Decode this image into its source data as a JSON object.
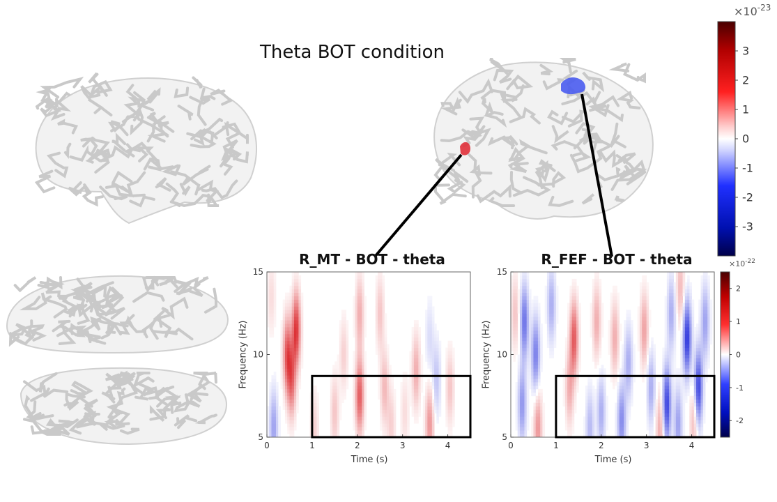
{
  "title": "Theta BOT condition",
  "brains": {
    "left_lateral": "brain-left-lateral",
    "right_lateral": "brain-right-lateral",
    "top_view": "brain-top-view",
    "bottom_view": "brain-bottom-view"
  },
  "colors": {
    "positive": "#e8141c",
    "negative": "#1a2ed8",
    "brain_fill": "#f2f2f2",
    "sulci": "#c9c9c9",
    "roi_red": "#e0303a",
    "roi_blue": "#4a5cf0"
  },
  "main_colorbar": {
    "exponent_label": "×10",
    "exponent": "-23",
    "ticks": [
      "3",
      "2",
      "1",
      "0",
      "-1",
      "-2",
      "-3"
    ],
    "tick_values": [
      3,
      2,
      1,
      0,
      -1,
      -2,
      -3
    ],
    "range": [
      -4,
      4
    ]
  },
  "chart_data": [
    {
      "type": "heatmap",
      "title": "R_MT - BOT - theta",
      "xlabel": "Time (s)",
      "ylabel": "Frequency (Hz)",
      "xlim": [
        0,
        4.5
      ],
      "ylim": [
        5,
        15
      ],
      "xticks": [
        "0",
        "1",
        "2",
        "3",
        "4"
      ],
      "yticks": [
        "5",
        "10",
        "15"
      ],
      "highlight_box": {
        "x": [
          1,
          4.5
        ],
        "y": [
          5,
          8.7
        ]
      },
      "blobs": [
        {
          "t": 0.45,
          "f": 10.0,
          "amp": 0.7,
          "sign": 1
        },
        {
          "t": 0.65,
          "f": 11.5,
          "amp": 0.85,
          "sign": 1
        },
        {
          "t": 0.55,
          "f": 8.5,
          "amp": 0.6,
          "sign": 1
        },
        {
          "t": 0.15,
          "f": 5.6,
          "amp": 0.4,
          "sign": -1
        },
        {
          "t": 0.1,
          "f": 13.5,
          "amp": 0.15,
          "sign": 1
        },
        {
          "t": 2.05,
          "f": 7.5,
          "amp": 0.7,
          "sign": 1
        },
        {
          "t": 2.05,
          "f": 12.5,
          "amp": 0.35,
          "sign": 1
        },
        {
          "t": 1.5,
          "f": 6.5,
          "amp": 0.25,
          "sign": 1
        },
        {
          "t": 1.7,
          "f": 10.0,
          "amp": 0.2,
          "sign": 1
        },
        {
          "t": 2.6,
          "f": 8.0,
          "amp": 0.3,
          "sign": 1
        },
        {
          "t": 2.5,
          "f": 12.5,
          "amp": 0.25,
          "sign": 1
        },
        {
          "t": 2.75,
          "f": 5.8,
          "amp": 0.2,
          "sign": 1
        },
        {
          "t": 3.3,
          "f": 9.0,
          "amp": 0.35,
          "sign": 1
        },
        {
          "t": 3.6,
          "f": 5.8,
          "amp": 0.45,
          "sign": 1
        },
        {
          "t": 3.75,
          "f": 8.5,
          "amp": 0.25,
          "sign": -1
        },
        {
          "t": 4.05,
          "f": 8.0,
          "amp": 0.25,
          "sign": 1
        },
        {
          "t": 3.05,
          "f": 6.5,
          "amp": 0.15,
          "sign": 1
        },
        {
          "t": 1.05,
          "f": 5.5,
          "amp": 0.2,
          "sign": 1
        },
        {
          "t": 3.6,
          "f": 11.0,
          "amp": 0.15,
          "sign": -1
        }
      ]
    },
    {
      "type": "heatmap",
      "title": "R_FEF - BOT - theta",
      "xlabel": "Time (s)",
      "ylabel": "Frequency (Hz)",
      "xlim": [
        0,
        4.5
      ],
      "ylim": [
        5,
        15
      ],
      "xticks": [
        "0",
        "1",
        "2",
        "3",
        "4"
      ],
      "yticks": [
        "5",
        "10",
        "15"
      ],
      "highlight_box": {
        "x": [
          1,
          4.5
        ],
        "y": [
          5,
          8.7
        ]
      },
      "colorbar": {
        "exponent_label": "×10",
        "exponent": "-22",
        "ticks": [
          "2",
          "1",
          "0",
          "-1",
          "-2"
        ],
        "tick_values": [
          2,
          1,
          0,
          -1,
          -2
        ],
        "range": [
          -2.5,
          2.5
        ]
      },
      "blobs": [
        {
          "t": 0.3,
          "f": 12.0,
          "amp": 0.6,
          "sign": -1
        },
        {
          "t": 0.55,
          "f": 10.0,
          "amp": 0.55,
          "sign": -1
        },
        {
          "t": 0.25,
          "f": 7.0,
          "amp": 0.45,
          "sign": -1
        },
        {
          "t": 0.9,
          "f": 13.0,
          "amp": 0.35,
          "sign": -1
        },
        {
          "t": 0.1,
          "f": 12.5,
          "amp": 0.25,
          "sign": 1
        },
        {
          "t": 0.6,
          "f": 5.6,
          "amp": 0.45,
          "sign": 1
        },
        {
          "t": 1.4,
          "f": 11.0,
          "amp": 0.7,
          "sign": 1
        },
        {
          "t": 1.3,
          "f": 8.0,
          "amp": 0.35,
          "sign": 1
        },
        {
          "t": 1.9,
          "f": 12.0,
          "amp": 0.35,
          "sign": 1
        },
        {
          "t": 2.3,
          "f": 11.0,
          "amp": 0.35,
          "sign": 1
        },
        {
          "t": 2.0,
          "f": 6.5,
          "amp": 0.35,
          "sign": -1
        },
        {
          "t": 2.45,
          "f": 6.0,
          "amp": 0.5,
          "sign": -1
        },
        {
          "t": 2.6,
          "f": 9.5,
          "amp": 0.35,
          "sign": -1
        },
        {
          "t": 2.95,
          "f": 11.5,
          "amp": 0.4,
          "sign": 1
        },
        {
          "t": 3.1,
          "f": 8.0,
          "amp": 0.35,
          "sign": -1
        },
        {
          "t": 3.45,
          "f": 7.0,
          "amp": 0.8,
          "sign": -1
        },
        {
          "t": 3.55,
          "f": 12.5,
          "amp": 0.35,
          "sign": -1
        },
        {
          "t": 3.9,
          "f": 11.0,
          "amp": 0.85,
          "sign": -1
        },
        {
          "t": 4.15,
          "f": 8.0,
          "amp": 0.8,
          "sign": -1
        },
        {
          "t": 4.3,
          "f": 12.0,
          "amp": 0.4,
          "sign": -1
        },
        {
          "t": 3.7,
          "f": 5.8,
          "amp": 0.4,
          "sign": -1
        },
        {
          "t": 3.3,
          "f": 5.5,
          "amp": 0.35,
          "sign": 1
        },
        {
          "t": 4.05,
          "f": 6.0,
          "amp": 0.3,
          "sign": 1
        },
        {
          "t": 1.75,
          "f": 5.6,
          "amp": 0.3,
          "sign": -1
        },
        {
          "t": 3.75,
          "f": 14.0,
          "amp": 0.3,
          "sign": 1
        }
      ]
    }
  ]
}
